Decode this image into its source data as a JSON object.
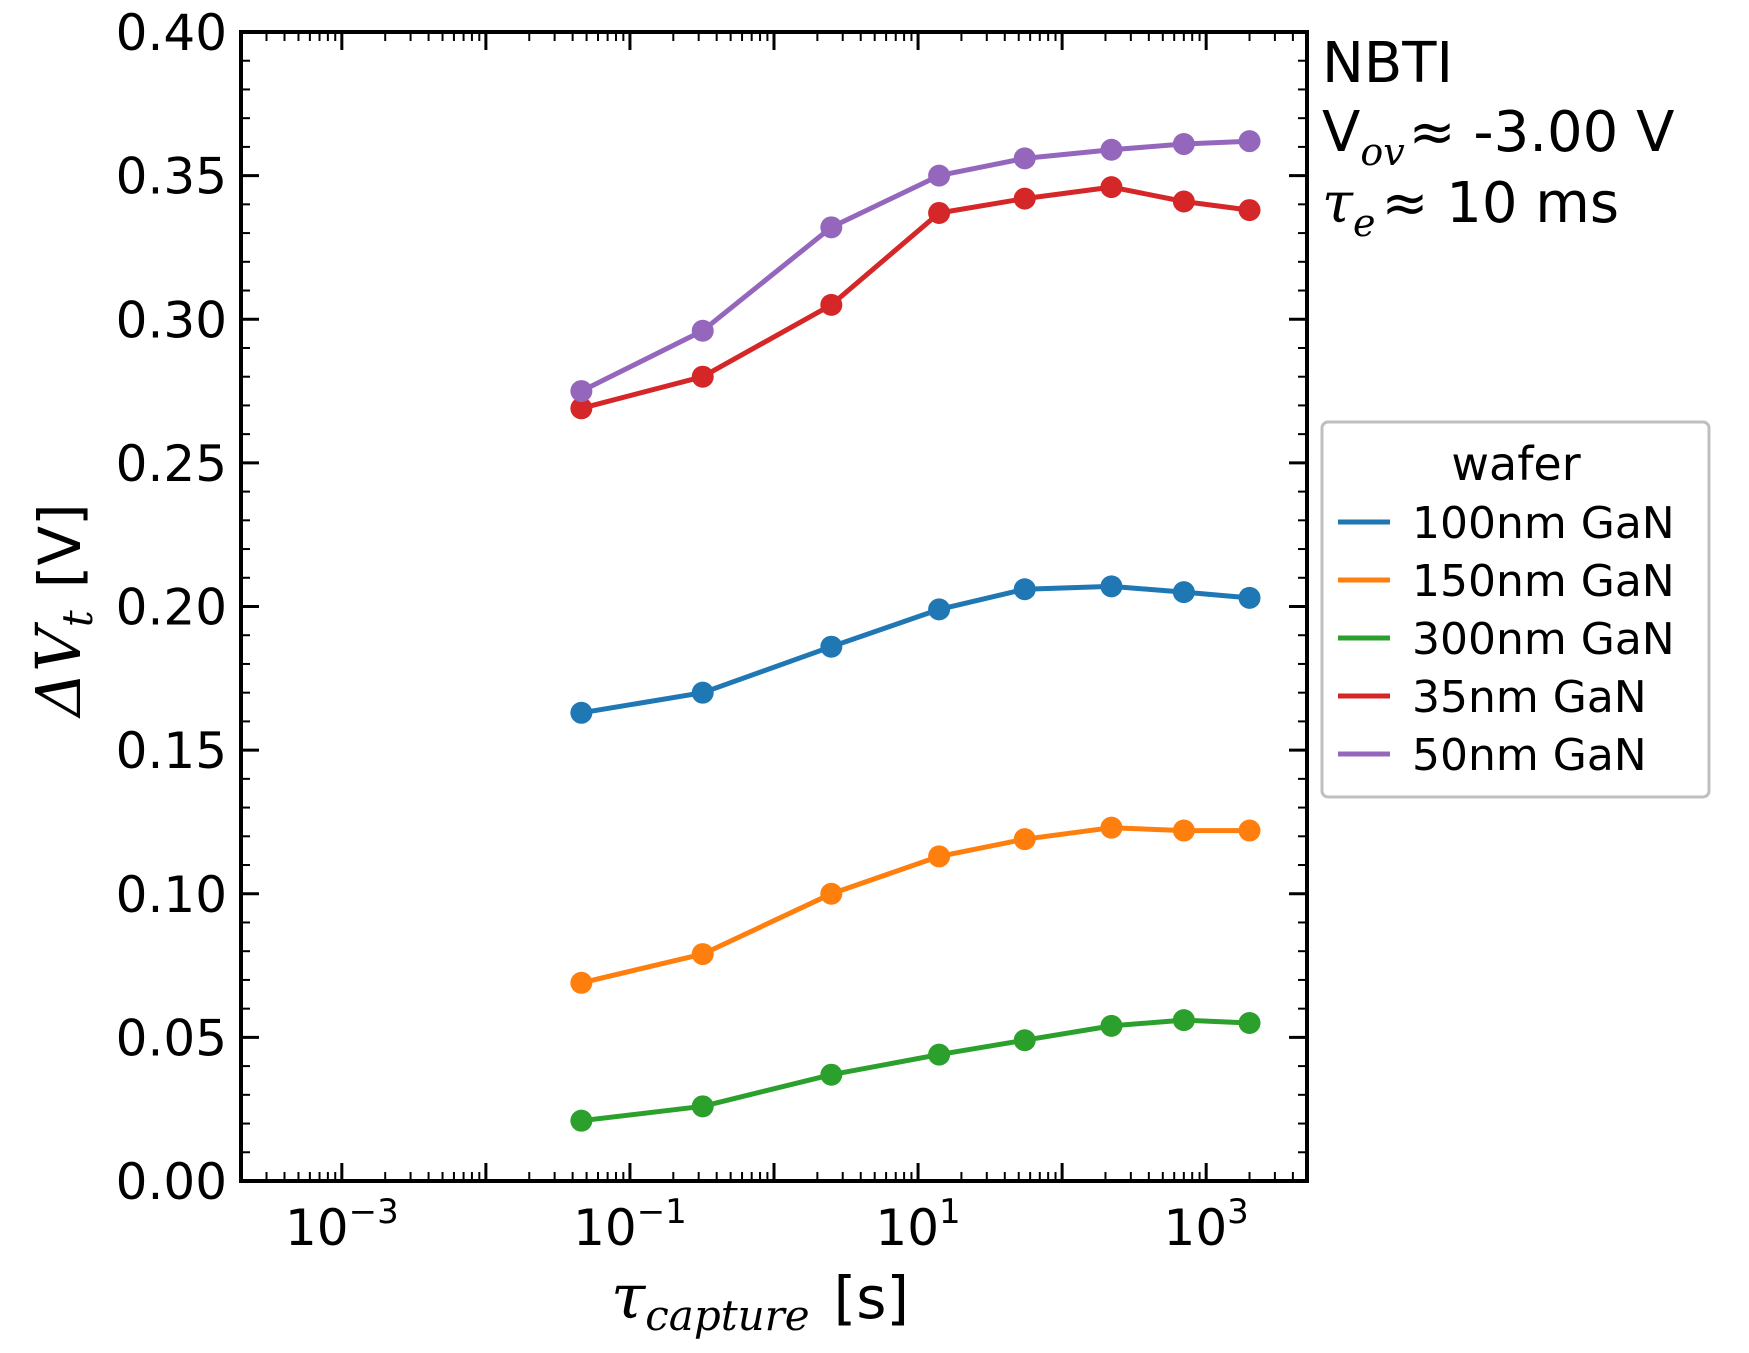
{
  "chart_data": {
    "type": "line",
    "x_scale": "log",
    "xlim_exp": [
      -3.7,
      3.7
    ],
    "ylim": [
      0.0,
      0.4
    ],
    "x_ticks": [
      {
        "exp": -3,
        "label": "10",
        "sup": "−3"
      },
      {
        "exp": -1,
        "label": "10",
        "sup": "−1"
      },
      {
        "exp": 1,
        "label": "10",
        "sup": "1"
      },
      {
        "exp": 3,
        "label": "10",
        "sup": "3"
      }
    ],
    "y_ticks": [
      "0.00",
      "0.05",
      "0.10",
      "0.15",
      "0.20",
      "0.25",
      "0.30",
      "0.35",
      "0.40"
    ],
    "y_tick_values": [
      0.0,
      0.05,
      0.1,
      0.15,
      0.2,
      0.25,
      0.3,
      0.35,
      0.4
    ],
    "xlabel": {
      "symbol": "τ",
      "sub": "capture",
      "unit": "[s]"
    },
    "ylabel": {
      "symbol": "ΔV",
      "sub": "t",
      "unit": "[V]"
    },
    "x": [
      0.046,
      0.32,
      2.5,
      14,
      55,
      220,
      700,
      2000
    ],
    "series": [
      {
        "name": "100nm GaN",
        "color": "#1f77b4",
        "values": [
          0.163,
          0.17,
          0.186,
          0.199,
          0.206,
          0.207,
          0.205,
          0.203
        ]
      },
      {
        "name": "150nm GaN",
        "color": "#ff7f0e",
        "values": [
          0.069,
          0.079,
          0.1,
          0.113,
          0.119,
          0.123,
          0.122,
          0.122
        ]
      },
      {
        "name": "300nm GaN",
        "color": "#2ca02c",
        "values": [
          0.021,
          0.026,
          0.037,
          0.044,
          0.049,
          0.054,
          0.056,
          0.055
        ]
      },
      {
        "name": "35nm GaN",
        "color": "#d62728",
        "values": [
          0.269,
          0.28,
          0.305,
          0.337,
          0.342,
          0.346,
          0.341,
          0.338
        ]
      },
      {
        "name": "50nm GaN",
        "color": "#9467bd",
        "values": [
          0.275,
          0.296,
          0.332,
          0.35,
          0.356,
          0.359,
          0.361,
          0.362
        ]
      }
    ],
    "legend": {
      "title": "wafer",
      "position": "right, outside plot"
    },
    "annotation": {
      "line1": "NBTI",
      "line2_prefix": "V",
      "line2_sub": "ov",
      "line2_rest": "≈  -3.00 V",
      "line3_prefix": "τ",
      "line3_sub": "e",
      "line3_rest": "≈  10 ms"
    },
    "grid": false
  }
}
